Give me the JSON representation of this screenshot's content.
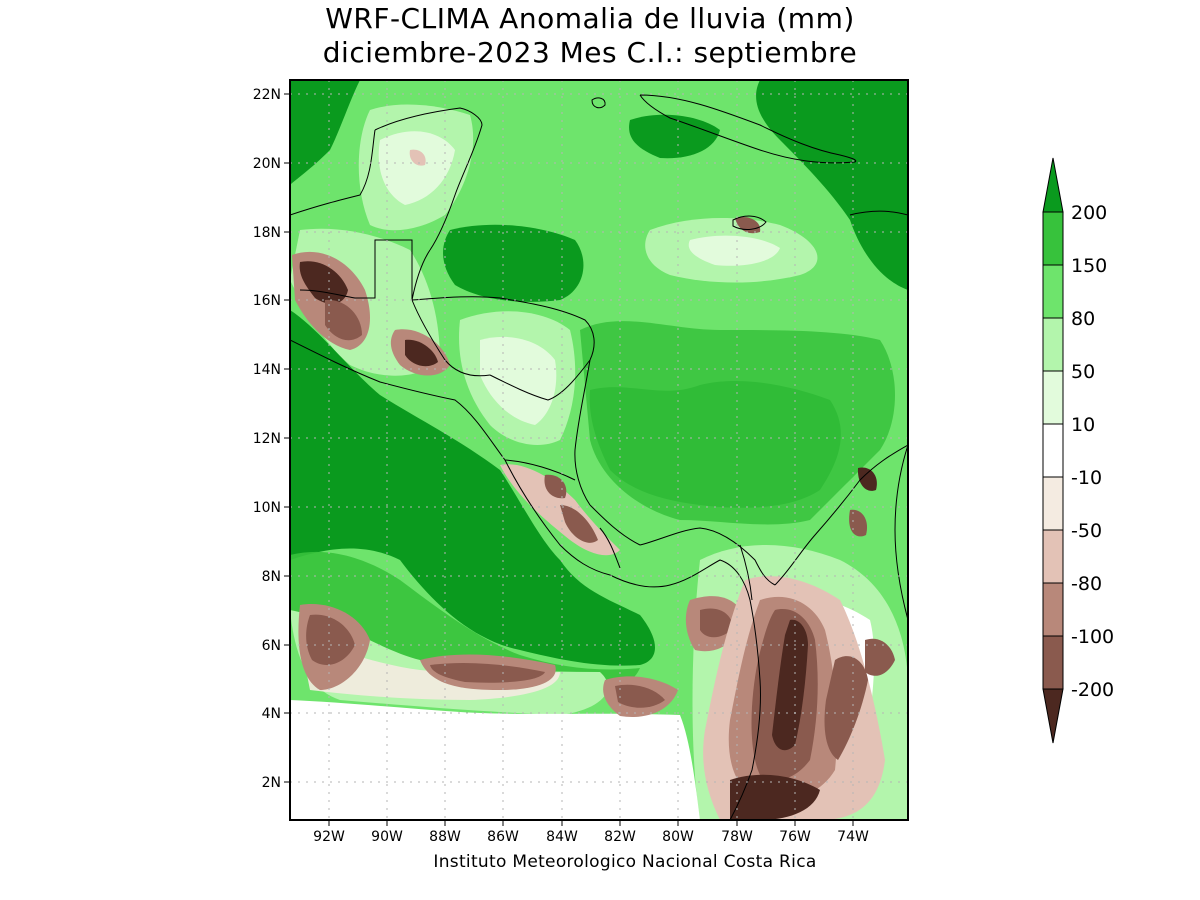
{
  "title_line1": "WRF-CLIMA Anomalia de lluvia (mm)",
  "title_line2": "diciembre-2023 Mes C.I.: septiembre",
  "credit": "Instituto Meteorologico Nacional Costa Rica",
  "lat_labels": [
    "22N",
    "20N",
    "18N",
    "16N",
    "14N",
    "12N",
    "10N",
    "8N",
    "6N",
    "4N",
    "2N"
  ],
  "lon_labels": [
    "92W",
    "90W",
    "88W",
    "86W",
    "84W",
    "82W",
    "80W",
    "78W",
    "76W",
    "74W"
  ],
  "colorbar": {
    "labels": [
      "200",
      "150",
      "80",
      "50",
      "10",
      "-10",
      "-50",
      "-80",
      "-100",
      "-200"
    ],
    "colors": {
      "gt200": "#0a9a1e",
      "c150_200": "#37c23c",
      "c80_150": "#6ee46c",
      "c50_80": "#b3f5ac",
      "c10_50": "#e2fbdc",
      "neutral": "#ffffff",
      "cm10_m50": "#f4ebe1",
      "cm50_m80": "#e3c2b6",
      "cm80_m100": "#b8887a",
      "cm100_m200": "#8a5a4e",
      "lt_m200": "#4c2820"
    }
  }
}
